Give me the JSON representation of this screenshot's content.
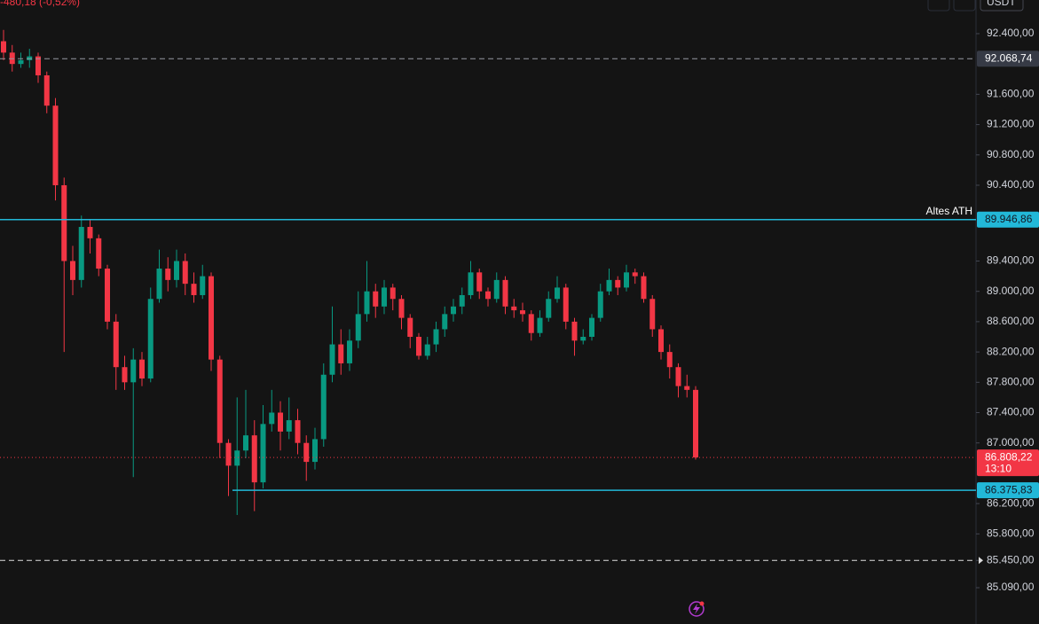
{
  "chart_data": {
    "type": "candlestick",
    "subtitle": "-480,18 (-0,52%)",
    "currency": "USDT",
    "ylim": [
      84611,
      92844
    ],
    "yticks": [
      {
        "value": 92400,
        "label": "92.400,00"
      },
      {
        "value": 91600,
        "label": "91.600,00"
      },
      {
        "value": 91200,
        "label": "91.200,00"
      },
      {
        "value": 90800,
        "label": "90.800,00"
      },
      {
        "value": 90400,
        "label": "90.400,00"
      },
      {
        "value": 89400,
        "label": "89.400,00"
      },
      {
        "value": 89000,
        "label": "89.000,00"
      },
      {
        "value": 88600,
        "label": "88.600,00"
      },
      {
        "value": 88200,
        "label": "88.200,00"
      },
      {
        "value": 87800,
        "label": "87.800,00"
      },
      {
        "value": 87400,
        "label": "87.400,00"
      },
      {
        "value": 87000,
        "label": "87.000,00"
      },
      {
        "value": 86200,
        "label": "86.200,00"
      },
      {
        "value": 85800,
        "label": "85.800,00"
      },
      {
        "value": 85450,
        "label": "85.450,00"
      },
      {
        "value": 85090,
        "label": "85.090,00"
      }
    ],
    "up_color": "#089981",
    "down_color": "#f23645",
    "open": [
      92300,
      92150,
      92000,
      92050,
      92100,
      91850,
      91450,
      90400,
      89400,
      89150,
      89850,
      89700,
      89300,
      88600,
      88000,
      87800,
      88100,
      87850,
      88900,
      89300,
      89150,
      89400,
      89100,
      88950,
      89200,
      88100,
      87000,
      86700,
      86900,
      87100,
      86480,
      87250,
      87400,
      87150,
      87300,
      87000,
      86750,
      87050,
      87900,
      88300,
      88050,
      88350,
      88700,
      89000,
      88800,
      89050,
      88900,
      88650,
      88400,
      88150,
      88300,
      88500,
      88700,
      88800,
      88950,
      89250,
      89000,
      88900,
      89150,
      88800,
      88750,
      88700,
      88450,
      88650,
      88900,
      89050,
      88600,
      88350,
      88400,
      88650,
      89000,
      89150,
      89050,
      89250,
      89200,
      88900,
      88500,
      88200,
      88000,
      87750,
      87700
    ],
    "high": [
      92450,
      92250,
      92150,
      92200,
      92150,
      91900,
      91550,
      90500,
      89600,
      90000,
      89950,
      89750,
      89350,
      88700,
      88150,
      88250,
      88200,
      89050,
      89550,
      89450,
      89550,
      89500,
      89250,
      89350,
      89250,
      88150,
      87050,
      87600,
      87700,
      87300,
      87500,
      87700,
      87550,
      87600,
      87450,
      87100,
      87200,
      88050,
      88800,
      88500,
      88500,
      89000,
      89400,
      89100,
      89150,
      89100,
      88950,
      88700,
      88450,
      88400,
      88600,
      88800,
      88900,
      89050,
      89400,
      89300,
      89050,
      89250,
      89200,
      88900,
      88850,
      88750,
      88750,
      89000,
      89200,
      89100,
      88650,
      88500,
      88700,
      89100,
      89300,
      89200,
      89350,
      89300,
      89250,
      88950,
      88550,
      88300,
      88050,
      87900,
      87750
    ],
    "low": [
      92050,
      91900,
      91950,
      91950,
      91750,
      91350,
      90200,
      88200,
      88950,
      89050,
      89500,
      89200,
      88500,
      87700,
      87700,
      86550,
      87750,
      87800,
      88850,
      89000,
      89050,
      88950,
      88850,
      88900,
      87950,
      86800,
      86300,
      86050,
      86800,
      86100,
      86400,
      87150,
      86900,
      87050,
      86850,
      86500,
      86650,
      86950,
      87800,
      87900,
      87950,
      88250,
      88600,
      88650,
      88700,
      88750,
      88500,
      88250,
      88100,
      88100,
      88200,
      88400,
      88600,
      88700,
      88900,
      88900,
      88800,
      88850,
      88700,
      88650,
      88600,
      88350,
      88400,
      88600,
      88850,
      88500,
      88150,
      88300,
      88350,
      88600,
      88950,
      88950,
      89000,
      89100,
      88850,
      88400,
      88100,
      87850,
      87600,
      87600,
      86780
    ],
    "close": [
      92150,
      92000,
      92050,
      92100,
      91850,
      91450,
      90400,
      89400,
      89150,
      89850,
      89700,
      89300,
      88600,
      88000,
      87800,
      88100,
      87850,
      88900,
      89300,
      89150,
      89400,
      89100,
      88950,
      89200,
      88100,
      87000,
      86700,
      86900,
      87100,
      86480,
      87250,
      87400,
      87150,
      87300,
      87000,
      86750,
      87050,
      87900,
      88300,
      88050,
      88350,
      88700,
      89000,
      88800,
      89050,
      88900,
      88650,
      88400,
      88150,
      88300,
      88500,
      88700,
      88800,
      88950,
      89250,
      89000,
      88900,
      89150,
      88800,
      88750,
      88700,
      88450,
      88650,
      88900,
      89050,
      88600,
      88350,
      88400,
      88650,
      89000,
      89150,
      89050,
      89250,
      89200,
      88900,
      88500,
      88200,
      88000,
      87750,
      87700,
      86808.22
    ],
    "price_lines": [
      {
        "value": 92068.74,
        "label": "92.068,74",
        "color": "#9598a1",
        "box_color": "#363a45",
        "style": "dashed"
      },
      {
        "value": 89946.86,
        "label": "89.946,86",
        "color": "#22b8d8",
        "box_color": "#22b8d8",
        "style": "solid",
        "text": "Altes ATH"
      },
      {
        "value": 86808.22,
        "label": "86.808,22",
        "color": "#f23645",
        "box_color": "#f23645",
        "style": "dotted",
        "countdown": "13:10"
      },
      {
        "value": 86375.83,
        "label": "86.375,83",
        "color": "#22b8d8",
        "box_color": "#22b8d8",
        "style": "solid"
      },
      {
        "value": 85450,
        "color": "#dddddd",
        "style": "dashed"
      }
    ]
  }
}
